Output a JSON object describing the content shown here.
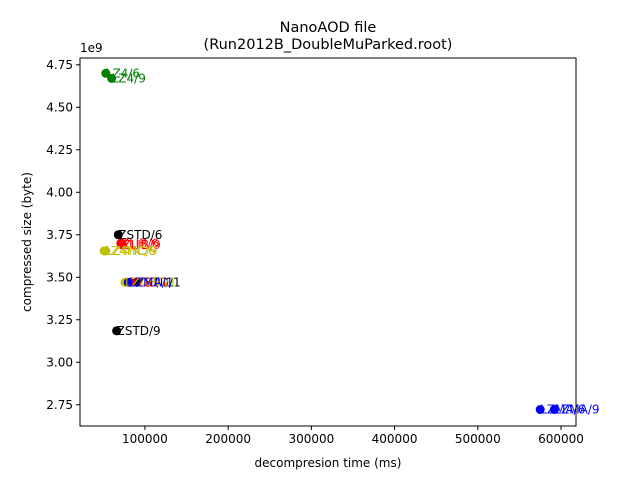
{
  "chart_data": {
    "type": "scatter",
    "title": "NanoAOD file",
    "subtitle": "(Run2012B_DoubleMuParked.root)",
    "xlabel": "decompresion time (ms)",
    "ylabel": "compressed size (byte)",
    "y_offset_label": "1e9",
    "xlim": [
      22000,
      618000
    ],
    "ylim": [
      2625000000.0,
      4790000000.0
    ],
    "x_ticks": [
      {
        "value": 100000,
        "label": "100000"
      },
      {
        "value": 200000,
        "label": "200000"
      },
      {
        "value": 300000,
        "label": "300000"
      },
      {
        "value": 400000,
        "label": "400000"
      },
      {
        "value": 500000,
        "label": "500000"
      },
      {
        "value": 600000,
        "label": "600000"
      }
    ],
    "y_ticks": [
      {
        "value": 2750000000.0,
        "label": "2.75"
      },
      {
        "value": 3000000000.0,
        "label": "3.00"
      },
      {
        "value": 3250000000.0,
        "label": "3.25"
      },
      {
        "value": 3500000000.0,
        "label": "3.50"
      },
      {
        "value": 3750000000.0,
        "label": "3.75"
      },
      {
        "value": 4000000000.0,
        "label": "4.00"
      },
      {
        "value": 4250000000.0,
        "label": "4.25"
      },
      {
        "value": 4500000000.0,
        "label": "4.50"
      },
      {
        "value": 4750000000.0,
        "label": "4.75"
      }
    ],
    "grid": false,
    "series": [
      {
        "color": "#008000",
        "points": [
          {
            "x": 53000,
            "y": 4700000000.0,
            "label": "LZ4/6"
          },
          {
            "x": 60000,
            "y": 4670000000.0,
            "label": "LZ4/9"
          }
        ]
      },
      {
        "color": "#000000",
        "points": [
          {
            "x": 68000,
            "y": 3750000000.0,
            "label": "ZSTD/6"
          },
          {
            "x": 90000,
            "y": 3470000000.0,
            "label": "ZSTD/1"
          },
          {
            "x": 66000,
            "y": 3185000000.0,
            "label": "ZSTD/9"
          }
        ]
      },
      {
        "color": "#ff0000",
        "points": [
          {
            "x": 71000,
            "y": 3700000000.0,
            "label": "ZLIB/6"
          },
          {
            "x": 73000,
            "y": 3690000000.0,
            "label": "ZLIB/9"
          },
          {
            "x": 82000,
            "y": 3470000000.0,
            "label": "ZLIB/1"
          }
        ]
      },
      {
        "color": "#bfbf00",
        "points": [
          {
            "x": 51000,
            "y": 3655000000.0,
            "label": "LZ4HC/6"
          },
          {
            "x": 53000,
            "y": 3655000000.0,
            "label": "LZ4HC/9"
          },
          {
            "x": 76000,
            "y": 3470000000.0,
            "label": "LZ4HC/1"
          }
        ]
      },
      {
        "color": "#0000ff",
        "points": [
          {
            "x": 80000,
            "y": 3470000000.0,
            "label": "LZMA/1"
          },
          {
            "x": 575000,
            "y": 2722000000.0,
            "label": "LZMA/6"
          },
          {
            "x": 592000,
            "y": 2722000000.0,
            "label": "LZMA/9"
          }
        ]
      }
    ]
  }
}
